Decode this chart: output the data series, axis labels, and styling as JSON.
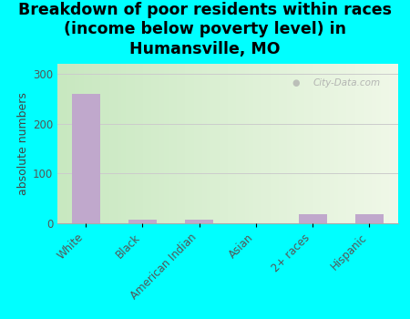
{
  "categories": [
    "White",
    "Black",
    "American Indian",
    "Asian",
    "2+ races",
    "Hispanic"
  ],
  "values": [
    260,
    8,
    8,
    0,
    18,
    18
  ],
  "bar_color": "#c0a8cc",
  "background_color": "#00ffff",
  "plot_bg_left": "#c8e8c0",
  "plot_bg_right": "#f0f4e8",
  "title_line1": "Breakdown of poor residents within races",
  "title_line2": "(income below poverty level) in",
  "title_line3": "Humansville, MO",
  "ylabel": "absolute numbers",
  "ylim": [
    0,
    320
  ],
  "yticks": [
    0,
    100,
    200,
    300
  ],
  "grid_color": "#cccccc",
  "watermark_text": "City-Data.com",
  "title_fontsize": 12.5,
  "ylabel_fontsize": 9,
  "tick_fontsize": 8.5,
  "axis_label_color": "#444444",
  "ytick_color": "#555555"
}
